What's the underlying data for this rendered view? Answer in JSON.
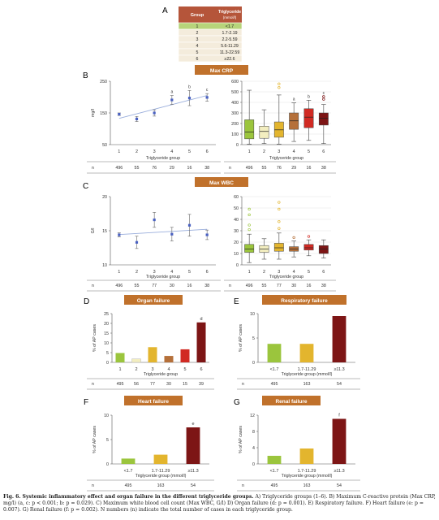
{
  "panels": {
    "A": {
      "letter": "A",
      "header_group": "Group",
      "header_tg": "Triglyceride",
      "header_unit": "(mmol/l)",
      "rows": [
        [
          "1",
          "<1.7"
        ],
        [
          "2",
          "1.7-2.19"
        ],
        [
          "3",
          "2.2-5.59"
        ],
        [
          "4",
          "5.6-11.29"
        ],
        [
          "5",
          "11.3-22.59"
        ],
        [
          "6",
          "≥22.6"
        ]
      ]
    },
    "B": {
      "letter": "B",
      "banner": "Max CRP"
    },
    "C": {
      "letter": "C",
      "banner": "Max WBC"
    },
    "D": {
      "letter": "D",
      "banner": "Organ failure"
    },
    "E": {
      "letter": "E",
      "banner": "Respiratory failure"
    },
    "F": {
      "letter": "F",
      "banner": "Heart failure"
    },
    "G": {
      "letter": "G",
      "banner": "Renal failure"
    }
  },
  "colors": {
    "tg_groups": [
      "#9bc53d",
      "#f3eec0",
      "#e3b52e",
      "#b5703a",
      "#d12a23",
      "#7d1515"
    ],
    "tg3_groups": [
      "#9bc53d",
      "#e3b52e",
      "#7d1515"
    ],
    "banner": "#c0712b",
    "mean_marker": "#4a61c2",
    "trend_line": "#9aaedc",
    "table_header": "#b5553a",
    "table_row1": "#b7d47a",
    "table_rows": "#f4ecdc"
  },
  "chart_data": [
    {
      "id": "B_left",
      "type": "scatter",
      "ylabel": "mg/l",
      "xlabel": "Triglyceride group",
      "ylim": [
        50,
        250
      ],
      "yticks": [
        50,
        150,
        250
      ],
      "x": [
        1,
        2,
        3,
        4,
        5,
        6
      ],
      "y": [
        146,
        131,
        150,
        191,
        197,
        199
      ],
      "err": [
        4,
        8,
        10,
        14,
        24,
        12
      ],
      "annotations": [
        "",
        "",
        "",
        "a",
        "b",
        "c"
      ],
      "trend": true,
      "n_label": "n",
      "n": [
        "496",
        "55",
        "76",
        "29",
        "16",
        "38"
      ]
    },
    {
      "id": "B_right",
      "type": "box",
      "xlabel": "Triglyceride group",
      "ylim": [
        0,
        600
      ],
      "yticks": [
        0,
        100,
        200,
        300,
        400,
        500,
        600
      ],
      "categories": [
        "1",
        "2",
        "3",
        "4",
        "5",
        "6"
      ],
      "boxes": [
        {
          "min": 5,
          "q1": 55,
          "median": 120,
          "q3": 235,
          "max": 515,
          "outliers": []
        },
        {
          "min": 10,
          "q1": 60,
          "median": 125,
          "q3": 175,
          "max": 330,
          "outliers": []
        },
        {
          "min": 5,
          "q1": 70,
          "median": 140,
          "q3": 215,
          "max": 470,
          "outliers": [
            540,
            575
          ]
        },
        {
          "min": 30,
          "q1": 145,
          "median": 225,
          "q3": 300,
          "max": 395,
          "outliers": []
        },
        {
          "min": 40,
          "q1": 160,
          "median": 260,
          "q3": 340,
          "max": 420,
          "outliers": []
        },
        {
          "min": 10,
          "q1": 185,
          "median": 250,
          "q3": 300,
          "max": 380,
          "outliers": [
            430,
            455
          ]
        }
      ],
      "annotations": [
        "",
        "",
        "",
        "a",
        "b",
        "c"
      ],
      "n_label": "n",
      "n": [
        "496",
        "55",
        "76",
        "29",
        "16",
        "38"
      ]
    },
    {
      "id": "C_left",
      "type": "scatter",
      "ylabel": "G/l",
      "xlabel": "Triglyceride group",
      "ylim": [
        10,
        20
      ],
      "yticks": [
        10,
        15,
        20
      ],
      "x": [
        1,
        2,
        3,
        4,
        5,
        6
      ],
      "y": [
        14.4,
        13.3,
        16.6,
        14.5,
        15.8,
        14.4
      ],
      "err": [
        0.3,
        0.9,
        1.1,
        1.0,
        1.6,
        0.7
      ],
      "annotations": [
        "",
        "",
        "",
        "",
        "",
        ""
      ],
      "trend": true,
      "n_label": "n",
      "n": [
        "496",
        "55",
        "77",
        "30",
        "16",
        "38"
      ]
    },
    {
      "id": "C_right",
      "type": "box",
      "xlabel": "Triglyceride group",
      "ylim": [
        0,
        60
      ],
      "yticks": [
        0,
        10,
        20,
        30,
        40,
        50,
        60
      ],
      "categories": [
        "1",
        "2",
        "3",
        "4",
        "5",
        "6"
      ],
      "boxes": [
        {
          "min": 2,
          "q1": 11,
          "median": 14,
          "q3": 18,
          "max": 27,
          "outliers": [
            31,
            35,
            44,
            49
          ]
        },
        {
          "min": 5,
          "q1": 11,
          "median": 14,
          "q3": 17,
          "max": 23,
          "outliers": []
        },
        {
          "min": 5,
          "q1": 12,
          "median": 15,
          "q3": 19,
          "max": 28,
          "outliers": [
            32,
            38,
            49,
            55
          ]
        },
        {
          "min": 7,
          "q1": 12,
          "median": 14,
          "q3": 16,
          "max": 21,
          "outliers": [
            24
          ]
        },
        {
          "min": 8,
          "q1": 13,
          "median": 15,
          "q3": 18,
          "max": 22,
          "outliers": [
            25
          ]
        },
        {
          "min": 6,
          "q1": 10,
          "median": 14,
          "q3": 17,
          "max": 22,
          "outliers": []
        }
      ],
      "n_label": "n",
      "n": [
        "496",
        "55",
        "77",
        "30",
        "16",
        "38"
      ]
    },
    {
      "id": "D",
      "type": "bar",
      "ylabel": "% of AP cases",
      "xlabel": "Triglyceride group",
      "ylim": [
        0,
        25
      ],
      "yticks": [
        0,
        5,
        10,
        15,
        20,
        25
      ],
      "categories": [
        "1",
        "2",
        "3",
        "4",
        "5",
        "6"
      ],
      "values": [
        4.8,
        1.8,
        7.8,
        3.3,
        6.7,
        20.5
      ],
      "annotations": [
        "",
        "",
        "",
        "",
        "",
        "d"
      ],
      "n_label": "n",
      "n": [
        "495",
        "56",
        "77",
        "30",
        "15",
        "39"
      ]
    },
    {
      "id": "E",
      "type": "bar",
      "ylabel": "% of AP cases",
      "xlabel": "Triglyceride group (mmol/l)",
      "ylim": [
        0,
        10
      ],
      "yticks": [
        0,
        5,
        10
      ],
      "categories": [
        "<1.7",
        "1.7-11.29",
        "≥11.3"
      ],
      "values": [
        3.8,
        3.8,
        9.5
      ],
      "annotations": [
        "",
        "",
        ""
      ],
      "n_label": "n",
      "n": [
        "495",
        "163",
        "54"
      ]
    },
    {
      "id": "F",
      "type": "bar",
      "ylabel": "% of AP cases",
      "xlabel": "Triglyceride group (mmol/l)",
      "ylim": [
        0,
        10
      ],
      "yticks": [
        0,
        5,
        10
      ],
      "categories": [
        "<1.7",
        "1.7-11.29",
        "≥11.3"
      ],
      "values": [
        1.1,
        1.9,
        7.5
      ],
      "annotations": [
        "",
        "",
        "e"
      ],
      "n_label": "n",
      "n": [
        "495",
        "163",
        "54"
      ]
    },
    {
      "id": "G",
      "type": "bar",
      "ylabel": "% of AP cases",
      "xlabel": "Triglyceride group (mmol/l)",
      "ylim": [
        0,
        12
      ],
      "yticks": [
        0,
        4,
        8,
        12
      ],
      "categories": [
        "<1.7",
        "1.7-11.29",
        "≥11.3"
      ],
      "values": [
        2.0,
        3.8,
        11.1
      ],
      "annotations": [
        "",
        "",
        "f"
      ],
      "n_label": "n",
      "n": [
        "495",
        "163",
        "54"
      ]
    }
  ],
  "caption": {
    "label": "Fig. 6.",
    "title": "Systemic inflammatory effect and organ failure in the different triglyceride groups.",
    "text": "A) Triglyceride groups (1–6). B) Maximum C-reactive protein (Max CRP, mg/l) (a, c: p < 0.001; b: p = 0.029). C) Maximum white blood cell count (Max WBC, G/l) D) Organ failure (d: p = 0.001). E) Respiratory failure. F) Heart failure (e: p = 0.007). G) Renal failure (f: p = 0.002). N numbers (n) indicate the total number of cases in each triglyceride group."
  }
}
